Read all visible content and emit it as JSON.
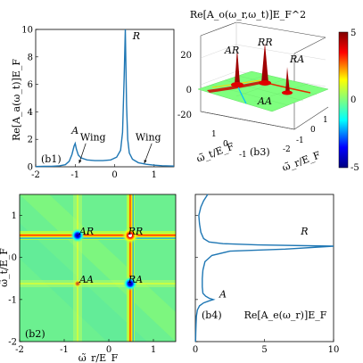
{
  "chart_data": [
    {
      "panel": "(b1)",
      "type": "line",
      "ylabel": "Re[A_a(ω_t)]E_F",
      "xlim": [
        -2,
        1.5
      ],
      "ylim": [
        0,
        10
      ],
      "xticks": [
        -2,
        -1,
        0,
        1
      ],
      "yticks": [
        0,
        2,
        4,
        6,
        8,
        10
      ],
      "annotations": [
        {
          "text": "A",
          "x": -1.0,
          "y": 2.4
        },
        {
          "text": "R",
          "x": 0.55,
          "y": 9.3
        },
        {
          "text": "Wing",
          "x": -0.55,
          "y": 1.9
        },
        {
          "text": "Wing",
          "x": 0.85,
          "y": 1.9
        }
      ],
      "series": [
        {
          "x": [
            -2.0,
            -1.8,
            -1.6,
            -1.4,
            -1.25,
            -1.15,
            -1.08,
            -1.03,
            -1.0,
            -0.97,
            -0.92,
            -0.85,
            -0.7,
            -0.5,
            -0.3,
            -0.1,
            0.05,
            0.15,
            0.2,
            0.24,
            0.27,
            0.3,
            0.33,
            0.37,
            0.45,
            0.6,
            0.8,
            1.0,
            1.2,
            1.5
          ],
          "y": [
            0.02,
            0.03,
            0.04,
            0.07,
            0.15,
            0.4,
            0.9,
            1.5,
            1.7,
            1.3,
            0.85,
            0.65,
            0.5,
            0.45,
            0.45,
            0.5,
            0.7,
            1.2,
            2.5,
            6.5,
            10,
            4.5,
            2.0,
            1.0,
            0.55,
            0.3,
            0.18,
            0.12,
            0.08,
            0.05
          ]
        }
      ]
    },
    {
      "panel": "(b3)",
      "type": "surface",
      "title": "Re[A_o(ω_r,ω_t)]E_F^2",
      "xlabel": "ω̃_r/E_F",
      "ylabel": "ω̃_t/E_F",
      "zlim": [
        -20,
        20
      ],
      "zticks": [
        -20,
        0,
        20
      ],
      "colorbar": {
        "min": -5,
        "max": 5,
        "ticks": [
          -5,
          0,
          5
        ]
      },
      "labels": [
        "AR",
        "RR",
        "RA",
        "AA"
      ]
    },
    {
      "panel": "(b2)",
      "type": "heatmap",
      "xlabel": "ω̃_r/E_F",
      "ylabel": "ω̃_t/E_F",
      "xlim": [
        -2,
        1.5
      ],
      "ylim": [
        -2,
        1.5
      ],
      "xticks": [
        -2,
        -1,
        0,
        1
      ],
      "yticks": [
        -2,
        -1,
        0,
        1
      ],
      "labels": [
        {
          "text": "AR",
          "x": -0.5,
          "y": 0.55
        },
        {
          "text": "RR",
          "x": 0.6,
          "y": 0.55
        },
        {
          "text": "AA",
          "x": -0.5,
          "y": -0.6
        },
        {
          "text": "RA",
          "x": 0.6,
          "y": -0.6
        }
      ]
    },
    {
      "panel": "(b4)",
      "type": "line",
      "xlabel": "Re[A_e(ω_r)]E_F",
      "xlim": [
        0,
        10
      ],
      "ylim": [
        -2,
        1.5
      ],
      "xticks": [
        0,
        5,
        10
      ],
      "annotations": [
        {
          "text": "R",
          "x": 7.9,
          "y": 0.55
        },
        {
          "text": "A",
          "x": 2.0,
          "y": -0.95
        }
      ],
      "series": [
        {
          "x": [
            0.02,
            0.03,
            0.05,
            0.08,
            0.15,
            0.3,
            0.6,
            1.0,
            1.3,
            1.0,
            0.75,
            0.55,
            0.5,
            0.5,
            0.55,
            0.7,
            1.2,
            2.5,
            6.5,
            10,
            4.5,
            2.0,
            1.0,
            0.6,
            0.4,
            0.3,
            0.25,
            0.4,
            0.6,
            0.9
          ],
          "y": [
            -2.0,
            -1.8,
            -1.6,
            -1.4,
            -1.25,
            -1.15,
            -1.08,
            -1.03,
            -1.0,
            -0.97,
            -0.92,
            -0.85,
            -0.7,
            -0.5,
            -0.3,
            -0.1,
            0.05,
            0.15,
            0.2,
            0.27,
            0.3,
            0.33,
            0.37,
            0.45,
            0.6,
            0.8,
            1.0,
            1.2,
            1.35,
            1.5
          ]
        }
      ]
    }
  ]
}
